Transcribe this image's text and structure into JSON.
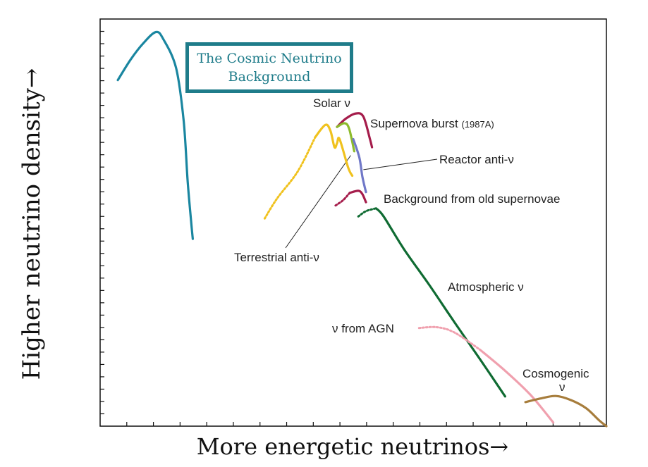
{
  "chart_data": {
    "type": "line",
    "title": "",
    "xlabel": "More energetic neutrinos→",
    "ylabel": "Higher neutrino density→",
    "xlim": [
      0,
      100
    ],
    "ylim": [
      0,
      100
    ],
    "grid": false,
    "ticks": {
      "x_count": 18,
      "y_count": 32,
      "labels": false
    },
    "highlight_box": {
      "line1": "The Cosmic Neutrino",
      "line2": "Background"
    },
    "series": [
      {
        "name": "The Cosmic Neutrino Background",
        "label": "The Cosmic Neutrino Background",
        "color": "#1a86a0",
        "points": [
          [
            3.5,
            85
          ],
          [
            6,
            90
          ],
          [
            8.5,
            94
          ],
          [
            11,
            96.8
          ],
          [
            12.5,
            95
          ],
          [
            15,
            88
          ],
          [
            16.5,
            75
          ],
          [
            17.3,
            60
          ],
          [
            18,
            50
          ],
          [
            18.3,
            46
          ]
        ]
      },
      {
        "name": "Solar ν",
        "label": "Solar ν",
        "color": "#f0c21e",
        "dotted_points": 3,
        "points": [
          [
            32.5,
            51
          ],
          [
            35,
            56
          ],
          [
            39,
            62.5
          ],
          [
            42.5,
            71
          ],
          [
            44.5,
            74
          ],
          [
            45.5,
            72.5
          ],
          [
            46.3,
            68.5
          ],
          [
            46.8,
            69.5
          ],
          [
            47.3,
            70.5
          ],
          [
            49,
            63.5
          ],
          [
            49.8,
            61.5
          ]
        ]
      },
      {
        "name": "Supernova burst (1987A)",
        "label": "Supernova burst",
        "label_small": "(1987A)",
        "color": "#a51c4b",
        "points": [
          [
            46.8,
            73.5
          ],
          [
            48.5,
            75.5
          ],
          [
            50.5,
            76.8
          ],
          [
            52,
            76
          ],
          [
            53.3,
            70.5
          ],
          [
            53.7,
            68.5
          ]
        ]
      },
      {
        "name": "Terrestrial anti-ν",
        "label": "Terrestrial anti-ν",
        "color": "#8dbb2c",
        "points": [
          [
            46.8,
            73.5
          ],
          [
            48.3,
            74.4
          ],
          [
            49.2,
            73
          ],
          [
            50.2,
            67.5
          ]
        ]
      },
      {
        "name": "Reactor anti-ν",
        "label": "Reactor anti-ν",
        "color": "#7078c8",
        "points": [
          [
            50,
            70.5
          ],
          [
            51.2,
            66
          ],
          [
            51.8,
            61.3
          ],
          [
            52.5,
            57.5
          ]
        ]
      },
      {
        "name": "Background from old supernovae",
        "label": "Background from old supernovae",
        "color": "#a51c4b",
        "dotted_points": 2,
        "points": [
          [
            46.5,
            54.2
          ],
          [
            48,
            55.5
          ],
          [
            49.3,
            57.3
          ],
          [
            51,
            57.8
          ],
          [
            51.8,
            57
          ],
          [
            52.5,
            55
          ]
        ]
      },
      {
        "name": "Atmospheric ν",
        "label": "Atmospheric ν",
        "color": "#0f6b32",
        "dotted_points": 2,
        "points": [
          [
            51,
            51.5
          ],
          [
            52.5,
            52.8
          ],
          [
            54.5,
            53.5
          ],
          [
            56,
            51.5
          ],
          [
            60,
            43.5
          ],
          [
            65,
            34.7
          ],
          [
            70,
            25.5
          ],
          [
            75,
            16.5
          ],
          [
            80,
            7.3
          ]
        ]
      },
      {
        "name": "ν from AGN",
        "label": "ν from AGN",
        "color": "#f0a0ae",
        "dotted_points": 3,
        "points": [
          [
            63,
            24.1
          ],
          [
            66.5,
            24.3
          ],
          [
            70,
            23
          ],
          [
            75,
            18.8
          ],
          [
            80,
            13.6
          ],
          [
            85,
            7.7
          ],
          [
            89.5,
            0.9
          ]
        ]
      },
      {
        "name": "Cosmogenic ν",
        "label": "Cosmogenic",
        "label2": "ν",
        "color": "#a77d3c",
        "points": [
          [
            84,
            5.9
          ],
          [
            87,
            6.8
          ],
          [
            90,
            7.4
          ],
          [
            93,
            6.4
          ],
          [
            96,
            4.4
          ],
          [
            98.5,
            1.5
          ],
          [
            100,
            0
          ]
        ]
      }
    ],
    "annotations": [
      {
        "text": "Terrestrial anti-ν",
        "points_to": [
          49.5,
          66.5
        ]
      },
      {
        "text": "Reactor anti-ν",
        "points_to": [
          52,
          63
        ]
      }
    ]
  }
}
